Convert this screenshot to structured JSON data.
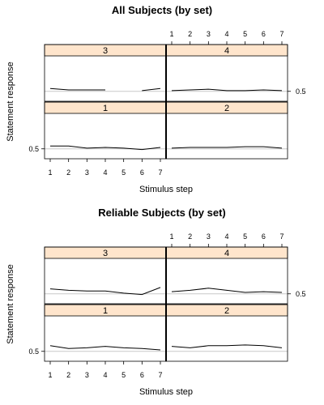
{
  "chart_data": [
    {
      "type": "line",
      "title": "All Subjects (by set)",
      "xlabel": "Stimulus step",
      "ylabel": "Statement response",
      "x": [
        1,
        2,
        3,
        4,
        5,
        6,
        7
      ],
      "x_ticks": [
        "1",
        "2",
        "3",
        "4",
        "5",
        "6",
        "7"
      ],
      "y_tick_label": "0.5",
      "ylim": [
        0.43,
        0.75
      ],
      "reference_line": 0.5,
      "layout": "2x2 trellis",
      "panels": [
        {
          "set": "3",
          "values": [
            0.52,
            0.51,
            0.51,
            0.51,
            null,
            0.505,
            0.52
          ]
        },
        {
          "set": "4",
          "values": [
            0.505,
            0.51,
            0.515,
            0.505,
            0.505,
            0.51,
            0.505
          ]
        },
        {
          "set": "1",
          "values": [
            0.52,
            0.52,
            0.505,
            0.51,
            0.505,
            0.495,
            0.51
          ]
        },
        {
          "set": "2",
          "values": [
            0.505,
            0.51,
            0.51,
            0.51,
            0.515,
            0.515,
            0.505
          ]
        }
      ]
    },
    {
      "type": "line",
      "title": "Reliable Subjects (by set)",
      "xlabel": "Stimulus step",
      "ylabel": "Statement response",
      "x": [
        1,
        2,
        3,
        4,
        5,
        6,
        7
      ],
      "x_ticks": [
        "1",
        "2",
        "3",
        "4",
        "5",
        "6",
        "7"
      ],
      "y_tick_label": "0.5",
      "ylim": [
        0.43,
        0.75
      ],
      "reference_line": 0.5,
      "layout": "2x2 trellis",
      "panels": [
        {
          "set": "3",
          "values": [
            0.535,
            0.525,
            0.52,
            0.52,
            0.505,
            0.495,
            0.545
          ]
        },
        {
          "set": "4",
          "values": [
            0.515,
            0.525,
            0.54,
            0.525,
            0.51,
            0.515,
            0.51
          ]
        },
        {
          "set": "1",
          "values": [
            0.54,
            0.52,
            0.525,
            0.535,
            0.525,
            0.52,
            0.51
          ]
        },
        {
          "set": "2",
          "values": [
            0.535,
            0.525,
            0.54,
            0.54,
            0.545,
            0.54,
            0.525
          ]
        }
      ]
    }
  ],
  "colors": {
    "strip_fill": "#ffe5cc",
    "frame": "#000000",
    "reference_line": "#c8c8c8",
    "series_line": "#000000"
  }
}
